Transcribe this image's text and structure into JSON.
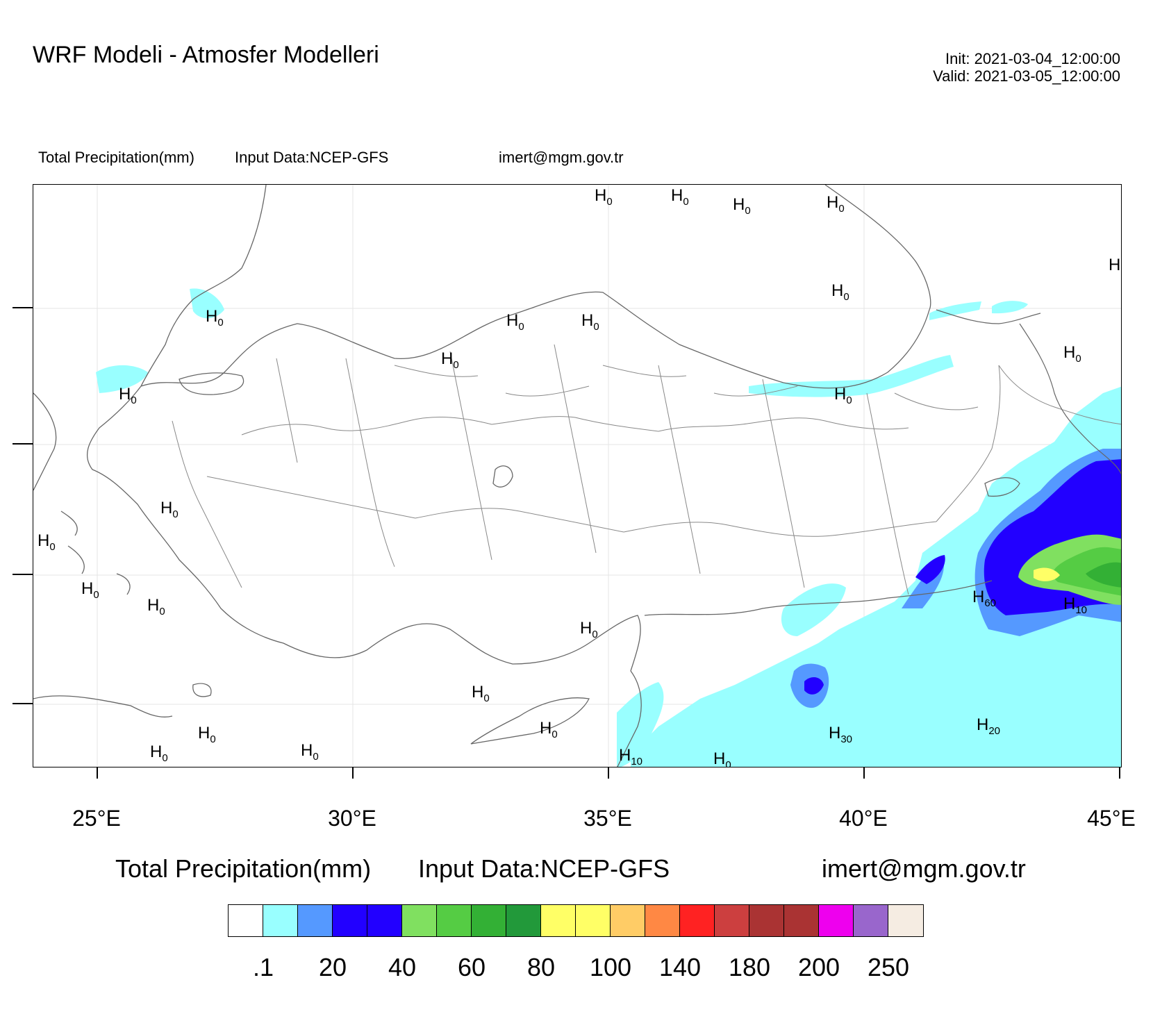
{
  "header": {
    "title": "WRF Modeli - Atmosfer Modelleri",
    "init": "Init: 2021-03-04_12:00:00",
    "valid": "Valid: 2021-03-05_12:00:00"
  },
  "subheader": {
    "variable": "Total Precipitation(mm)",
    "input": "Input Data:NCEP-GFS",
    "email": "imert@mgm.gov.tr"
  },
  "map": {
    "lon_range": [
      23.75,
      45
    ],
    "lat_range": [
      35.8,
      42.3
    ],
    "longitude_labels": [
      "25°E",
      "30°E",
      "35°E",
      "40°E",
      "45°E"
    ],
    "h_label_letter": "H",
    "highs": [
      {
        "value": "0"
      },
      {
        "value": "0"
      },
      {
        "value": "0"
      },
      {
        "value": "0"
      },
      {
        "value": ""
      },
      {
        "value": "0"
      },
      {
        "value": "0"
      },
      {
        "value": "0"
      },
      {
        "value": "0"
      },
      {
        "value": "0"
      },
      {
        "value": "0"
      },
      {
        "value": "0"
      },
      {
        "value": "0"
      },
      {
        "value": "0"
      },
      {
        "value": "0"
      },
      {
        "value": "0"
      },
      {
        "value": "60"
      },
      {
        "value": "10"
      },
      {
        "value": "0"
      },
      {
        "value": "0"
      },
      {
        "value": "0"
      },
      {
        "value": "0"
      },
      {
        "value": "20"
      },
      {
        "value": "30"
      },
      {
        "value": "0"
      },
      {
        "value": "0"
      },
      {
        "value": "0"
      },
      {
        "value": "10"
      },
      {
        "value": "0"
      }
    ]
  },
  "legend": {
    "title": "Total Precipitation(mm)",
    "input": "Input Data:NCEP-GFS",
    "email": "imert@mgm.gov.tr",
    "colors": [
      "#ffffff",
      "#99ffff",
      "#5599ff",
      "#2200ff",
      "#2200ff",
      "#80e060",
      "#55cc44",
      "#33b035",
      "#22993a",
      "#ffff66",
      "#ffff66",
      "#ffcc66",
      "#ff8844",
      "#ff2222",
      "#cc3f3f",
      "#aa3333",
      "#aa3333",
      "#ee00ee",
      "#9966cc",
      "#f5ece2"
    ],
    "labels": [
      ".1",
      "20",
      "40",
      "60",
      "80",
      "100",
      "140",
      "180",
      "200",
      "250"
    ]
  }
}
